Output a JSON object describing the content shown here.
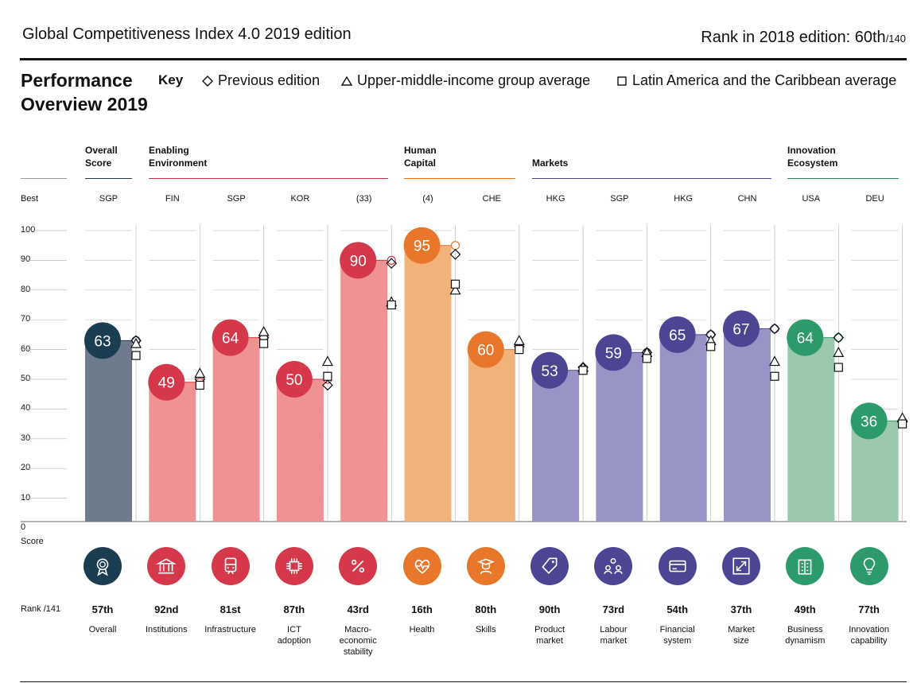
{
  "header": {
    "title": "Global Competitiveness Index 4.0 2019 edition",
    "rank_prefix": "Rank in 2018 edition: 60th",
    "rank_suffix": "/140"
  },
  "overview": {
    "title_line1": "Performance",
    "title_line2": "Overview 2019",
    "key_label": "Key",
    "key_items": [
      "Previous edition",
      "Upper-middle-income group average",
      "Latin America and the Caribbean average"
    ]
  },
  "labels": {
    "best": "Best",
    "score": "Score",
    "rank": "Rank /141"
  },
  "sections": [
    {
      "name_line1": "Overall",
      "name_line2": "Score",
      "color": "#1b3d52"
    },
    {
      "name_line1": "Enabling",
      "name_line2": "Environment",
      "color": "#c0343f"
    },
    {
      "name_line1": "Human",
      "name_line2": "Capital",
      "color": "#e0701c"
    },
    {
      "name_line1": "Markets",
      "name_line2": "",
      "color": "#4b4593"
    },
    {
      "name_line1": "Innovation",
      "name_line2": "Ecosystem",
      "color": "#2a8a5c"
    }
  ],
  "chart_data": {
    "type": "bar",
    "title": "Performance Overview 2019",
    "ylabel": "Score",
    "ylim": [
      0,
      100
    ],
    "yticks": [
      0,
      10,
      20,
      30,
      40,
      50,
      60,
      70,
      80,
      90,
      100
    ],
    "categories": [
      "Overall",
      "Institutions",
      "Infrastructure",
      "ICT adoption",
      "Macro-economic stability",
      "Health",
      "Skills",
      "Product market",
      "Labour market",
      "Financial system",
      "Market size",
      "Business dynamism",
      "Innovation capability"
    ],
    "display_names": [
      [
        "Overall"
      ],
      [
        "Institutions"
      ],
      [
        "Infrastructure"
      ],
      [
        "ICT",
        "adoption"
      ],
      [
        "Macro-",
        "economic",
        "stability"
      ],
      [
        "Health"
      ],
      [
        "Skills"
      ],
      [
        "Product",
        "market"
      ],
      [
        "Labour",
        "market"
      ],
      [
        "Financial",
        "system"
      ],
      [
        "Market",
        "size"
      ],
      [
        "Business",
        "dynamism"
      ],
      [
        "Innovation",
        "capability"
      ]
    ],
    "best": [
      "SGP",
      "FIN",
      "SGP",
      "KOR",
      "(33)",
      "(4)",
      "CHE",
      "HKG",
      "SGP",
      "HKG",
      "CHN",
      "USA",
      "DEU"
    ],
    "values": [
      63,
      49,
      64,
      50,
      90,
      95,
      60,
      53,
      59,
      65,
      67,
      64,
      36
    ],
    "ranks": [
      "57th",
      "92nd",
      "81st",
      "87th",
      "43rd",
      "16th",
      "80th",
      "90th",
      "73rd",
      "54th",
      "37th",
      "49th",
      "77th"
    ],
    "section": [
      0,
      1,
      1,
      1,
      1,
      2,
      2,
      3,
      3,
      3,
      3,
      4,
      4
    ],
    "series": [
      {
        "name": "Previous edition",
        "marker": "diamond",
        "values": [
          63,
          50,
          64,
          48,
          89,
          92,
          61,
          54,
          59,
          65,
          67,
          64,
          36
        ]
      },
      {
        "name": "Upper-middle-income group average",
        "marker": "triangle",
        "values": [
          62,
          52,
          66,
          56,
          76,
          80,
          63,
          54,
          59,
          63,
          56,
          59,
          37
        ]
      },
      {
        "name": "Latin America and the Caribbean average",
        "marker": "square",
        "values": [
          58,
          48,
          62,
          51,
          75,
          82,
          60,
          53,
          57,
          61,
          51,
          54,
          35
        ]
      }
    ],
    "bar_colors": [
      "#6e7b8d",
      "#ef9294",
      "#ef9294",
      "#ef9294",
      "#ef9294",
      "#f4b27b",
      "#f4b27b",
      "#9894c6",
      "#9894c6",
      "#9894c6",
      "#9894c6",
      "#9cc9ac",
      "#9cc9ac"
    ],
    "circle_colors": [
      "#1b3d52",
      "#d4384a",
      "#d4384a",
      "#d4384a",
      "#d4384a",
      "#e8762b",
      "#e8762b",
      "#4b4593",
      "#4b4593",
      "#4b4593",
      "#4b4593",
      "#2c9a6a",
      "#2c9a6a"
    ],
    "icons": [
      "medal-icon",
      "bank-icon",
      "train-icon",
      "chip-icon",
      "percent-icon",
      "heartbeat-icon",
      "graduate-icon",
      "tag-icon",
      "people-icon",
      "card-icon",
      "expand-icon",
      "building-icon",
      "bulb-icon"
    ]
  }
}
